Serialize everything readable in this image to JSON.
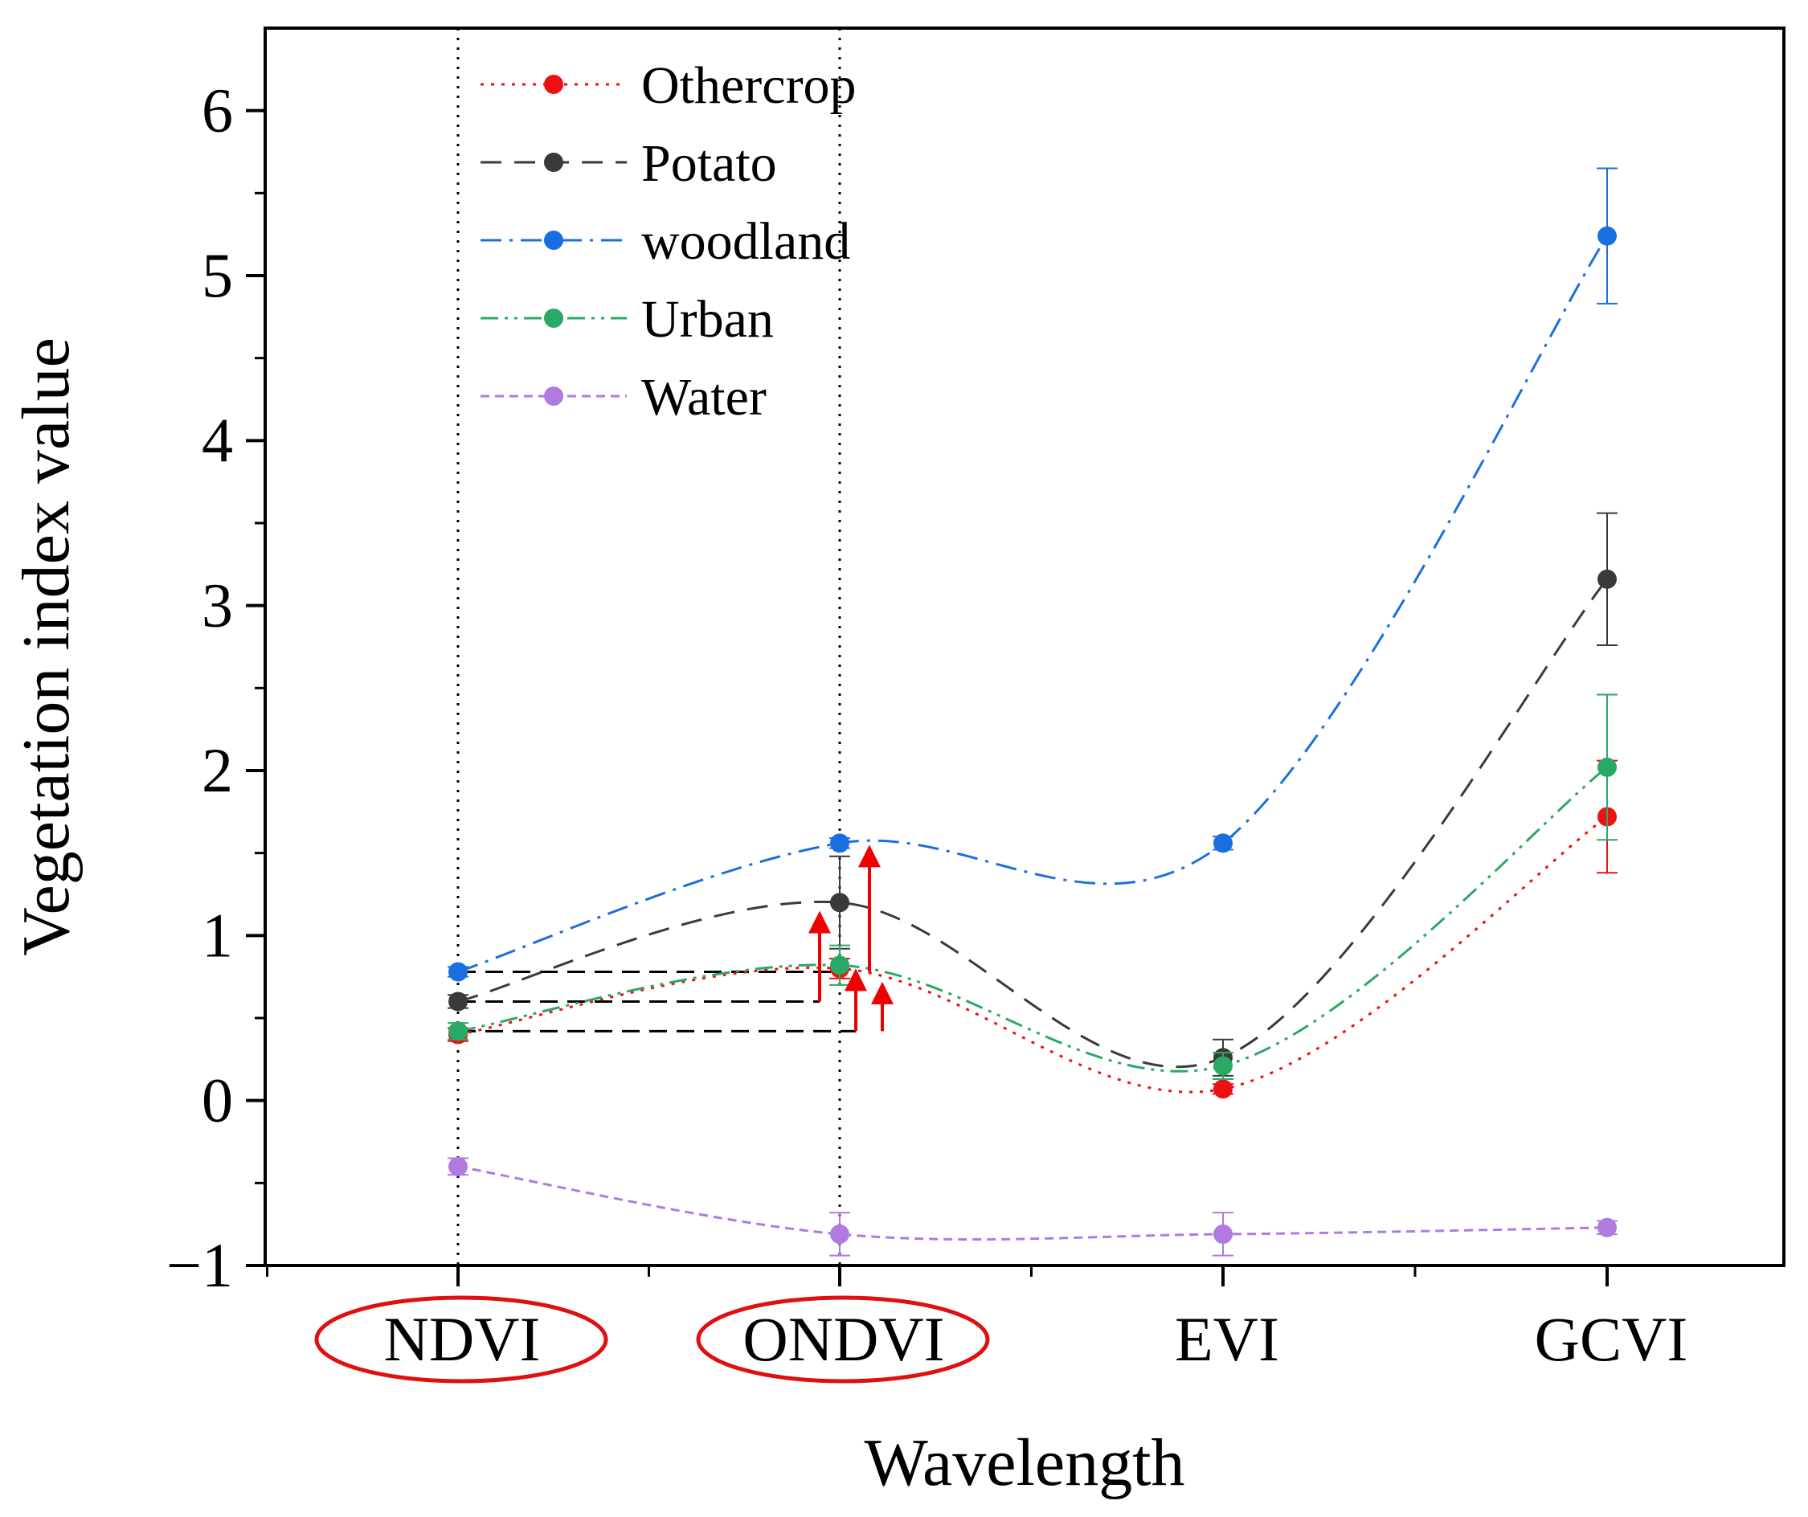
{
  "chart_data": {
    "type": "line",
    "title": "",
    "xlabel": "Wavelength",
    "ylabel": "Vegetation index value",
    "categories": [
      "NDVI",
      "ONDVI",
      "EVI",
      "GCVI"
    ],
    "highlighted_categories": [
      "NDVI",
      "ONDVI"
    ],
    "ylim": [
      -1,
      6.5
    ],
    "yticks": [
      -1,
      0,
      1,
      2,
      3,
      4,
      5,
      6
    ],
    "ytick_labels": [
      "−1",
      "0",
      "1",
      "2",
      "3",
      "4",
      "5",
      "6"
    ],
    "legend_position": "top-left",
    "series": [
      {
        "name": "Othercrop",
        "color": "#ee1111",
        "dash": "dotted",
        "values": [
          0.4,
          0.8,
          0.07,
          1.72
        ],
        "errors": [
          0.04,
          0.06,
          0.03,
          0.34
        ]
      },
      {
        "name": "Potato",
        "color": "#3a3a3a",
        "dash": "dashed",
        "values": [
          0.6,
          1.2,
          0.26,
          3.16
        ],
        "errors": [
          0.04,
          0.28,
          0.11,
          0.4
        ]
      },
      {
        "name": "woodland",
        "color": "#1a6fe0",
        "dash": "dashdot",
        "values": [
          0.78,
          1.56,
          1.56,
          5.24
        ],
        "errors": [
          0.03,
          0.03,
          0.04,
          0.41
        ]
      },
      {
        "name": "Urban",
        "color": "#2aa866",
        "dash": "dashdotdot",
        "values": [
          0.42,
          0.82,
          0.21,
          2.02
        ],
        "errors": [
          0.05,
          0.12,
          0.08,
          0.44
        ]
      },
      {
        "name": "Water",
        "color": "#b07ae0",
        "dash": "shortdash",
        "values": [
          -0.4,
          -0.81,
          -0.81,
          -0.77
        ],
        "errors": [
          0.05,
          0.13,
          0.13,
          0.04
        ]
      }
    ],
    "annotations": {
      "dotted_vertical_lines_at": [
        "NDVI",
        "ONDVI"
      ],
      "reference_levels": [
        0.78,
        0.6,
        0.42
      ],
      "arrows": [
        {
          "from": 0.6,
          "to": 1.15
        },
        {
          "from": 0.42,
          "to": 0.8
        },
        {
          "from": 0.78,
          "to": 1.55
        },
        {
          "from": 0.42,
          "to": 0.72
        }
      ]
    }
  }
}
